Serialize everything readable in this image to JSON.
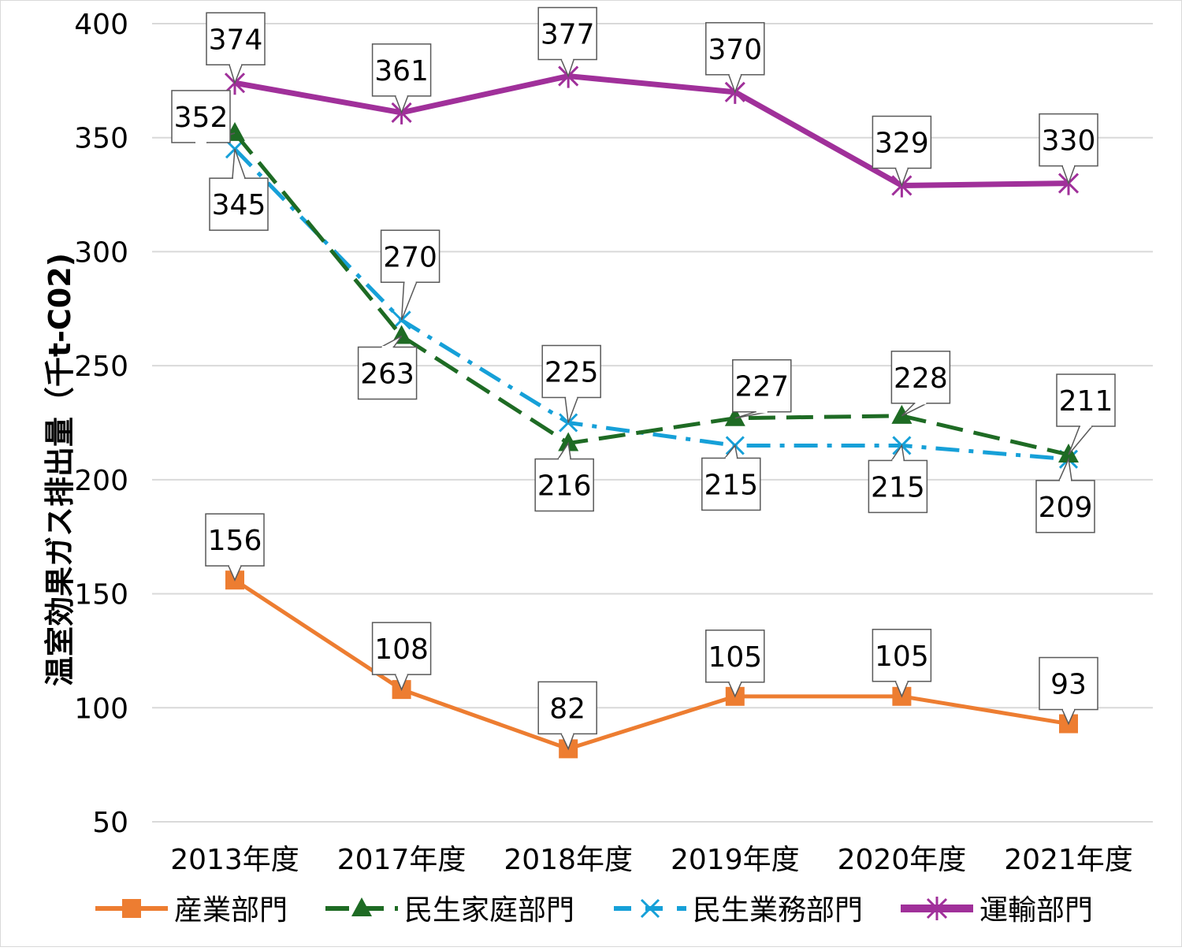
{
  "chart_data": {
    "type": "line",
    "title": "",
    "xlabel": "",
    "ylabel": "温室効果ガス排出量（千t-C02)",
    "ylim": [
      50,
      400
    ],
    "yticks": [
      "50",
      "100",
      "150",
      "200",
      "250",
      "300",
      "350",
      "400"
    ],
    "grid": true,
    "legend_placement": "bottom",
    "categories": [
      "2013年度",
      "2017年度",
      "2018年度",
      "2019年度",
      "2020年度",
      "2021年度"
    ],
    "series": [
      {
        "name": "産業部門",
        "values": [
          156,
          108,
          82,
          105,
          105,
          93
        ],
        "color": "#ed7d31",
        "marker": "square",
        "dash": "solid"
      },
      {
        "name": "民生家庭部門",
        "values": [
          352,
          263,
          216,
          227,
          228,
          211
        ],
        "color": "#1e6b24",
        "marker": "triangle",
        "dash": "dash"
      },
      {
        "name": "民生業務部門",
        "values": [
          345,
          270,
          225,
          215,
          215,
          209
        ],
        "color": "#16a0d8",
        "marker": "x",
        "dash": "dashdot"
      },
      {
        "name": "運輸部門",
        "values": [
          374,
          361,
          377,
          370,
          329,
          330
        ],
        "color": "#a0309a",
        "marker": "asterisk",
        "dash": "solid"
      }
    ]
  }
}
